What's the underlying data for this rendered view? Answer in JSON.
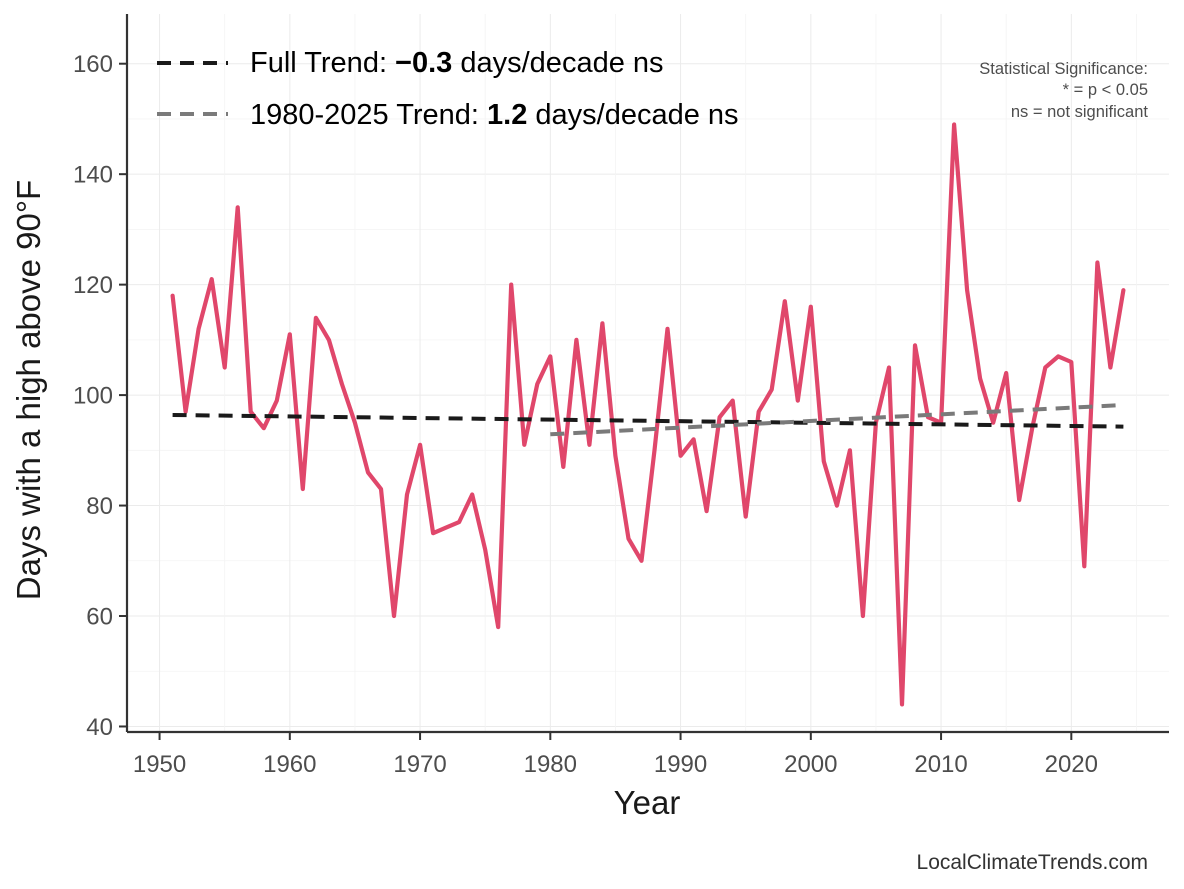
{
  "chart_data": {
    "type": "line",
    "xlabel": "Year",
    "ylabel": "Days with a high above 90°F",
    "xlim": [
      1947.5,
      2027.5
    ],
    "ylim": [
      39,
      169
    ],
    "x_ticks": [
      1950,
      1960,
      1970,
      1980,
      1990,
      2000,
      2010,
      2020
    ],
    "y_ticks": [
      40,
      60,
      80,
      100,
      120,
      140,
      160
    ],
    "grid": true,
    "series": [
      {
        "name": "Days with a high above 90°F",
        "color": "#E0476B",
        "x": [
          1951,
          1952,
          1953,
          1954,
          1955,
          1956,
          1957,
          1958,
          1959,
          1960,
          1961,
          1962,
          1963,
          1964,
          1965,
          1966,
          1967,
          1968,
          1969,
          1970,
          1971,
          1972,
          1973,
          1974,
          1975,
          1976,
          1977,
          1978,
          1979,
          1980,
          1981,
          1982,
          1983,
          1984,
          1985,
          1986,
          1987,
          1988,
          1989,
          1990,
          1991,
          1992,
          1993,
          1994,
          1995,
          1996,
          1997,
          1998,
          1999,
          2000,
          2001,
          2002,
          2003,
          2004,
          2005,
          2006,
          2007,
          2008,
          2009,
          2010,
          2011,
          2012,
          2013,
          2014,
          2015,
          2016,
          2017,
          2018,
          2019,
          2020,
          2021,
          2022,
          2023,
          2024
        ],
        "values": [
          118,
          97,
          112,
          121,
          105,
          134,
          97,
          94,
          99,
          111,
          83,
          114,
          110,
          102,
          95,
          86,
          83,
          60,
          82,
          91,
          75,
          76,
          77,
          82,
          72,
          58,
          120,
          91,
          102,
          107,
          87,
          110,
          91,
          113,
          89,
          74,
          70,
          90,
          112,
          89,
          92,
          79,
          96,
          99,
          78,
          97,
          101,
          117,
          99,
          116,
          88,
          80,
          90,
          60,
          95,
          105,
          44,
          109,
          96,
          95,
          149,
          119,
          103,
          95,
          104,
          81,
          94,
          105,
          107,
          106,
          69,
          124,
          105,
          119
        ]
      },
      {
        "name": "Full Trend",
        "style": "dashed",
        "color": "#1a1a1a",
        "x": [
          1951,
          2024
        ],
        "values": [
          96.4,
          94.3
        ]
      },
      {
        "name": "1980-2025 Trend",
        "style": "dashed",
        "color": "#7a7a7a",
        "x": [
          1980,
          2024
        ],
        "values": [
          92.9,
          98.2
        ]
      }
    ],
    "legend": {
      "placement": "top-left",
      "entries": [
        {
          "prefix": "Full Trend: ",
          "value": "−0.3",
          "suffix": " days/decade ns",
          "color": "#1a1a1a"
        },
        {
          "prefix": "1980-2025 Trend: ",
          "value": "1.2",
          "suffix": " days/decade ns",
          "color": "#7a7a7a"
        }
      ]
    },
    "annotations": {
      "significance_lines": [
        "Statistical Significance:",
        "* = p < 0.05",
        "ns = not significant"
      ],
      "source": "LocalClimateTrends.com"
    }
  }
}
